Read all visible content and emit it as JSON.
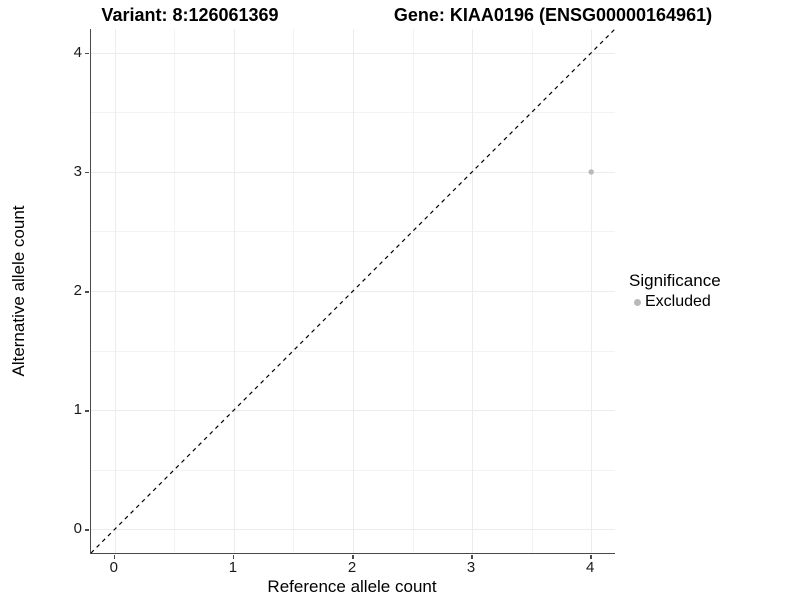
{
  "titles": {
    "variant": "Variant: 8:126061369",
    "gene": "Gene: KIAA0196 (ENSG00000164961)"
  },
  "chart_data": {
    "type": "scatter",
    "title_left": "Variant: 8:126061369",
    "title_right": "Gene: KIAA0196 (ENSG00000164961)",
    "xlabel": "Reference allele count",
    "ylabel": "Alternative allele count",
    "xlim": [
      -0.2,
      4.2
    ],
    "ylim": [
      -0.2,
      4.2
    ],
    "x_ticks": [
      0,
      1,
      2,
      3,
      4
    ],
    "y_ticks": [
      0,
      1,
      2,
      3,
      4
    ],
    "x_minor_gridlines": [
      0.5,
      1.5,
      2.5,
      3.5
    ],
    "y_minor_gridlines": [
      0.5,
      1.5,
      2.5,
      3.5
    ],
    "grid": true,
    "reference_line": {
      "slope": 1,
      "intercept": 0,
      "style": "dashed",
      "color": "#000000"
    },
    "series": [
      {
        "name": "Excluded",
        "color": "#b9b9b9",
        "points": [
          {
            "x": 4,
            "y": 3
          }
        ]
      }
    ],
    "legend": {
      "title": "Significance",
      "position": "right",
      "items": [
        {
          "label": "Excluded",
          "color": "#b9b9b9"
        }
      ]
    }
  },
  "colors": {
    "background": "#ffffff",
    "grid_major": "#ececec",
    "grid_minor": "#f3f3f3",
    "axis_line": "#4a4a4a",
    "point_excluded": "#b9b9b9",
    "dashed_line": "#000000"
  }
}
